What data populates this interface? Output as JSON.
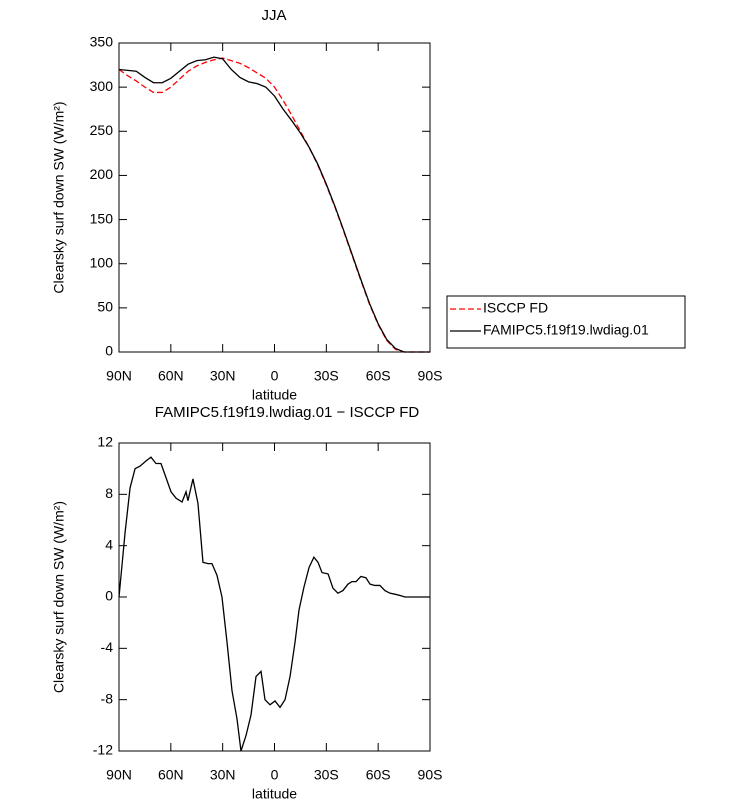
{
  "chart_data": [
    {
      "type": "line",
      "title": "JJA",
      "xlabel": "latitude",
      "ylabel": "Clearsky surf down SW (W/m²)",
      "x": [
        90,
        85,
        80,
        75,
        70,
        65,
        60,
        55,
        50,
        45,
        40,
        35,
        30,
        25,
        20,
        15,
        10,
        5,
        0,
        -5,
        -10,
        -15,
        -20,
        -25,
        -30,
        -35,
        -40,
        -45,
        -50,
        -55,
        -60,
        -65,
        -70,
        -75,
        -80,
        -85,
        -90
      ],
      "xlim": [
        90,
        -90
      ],
      "xticks": [
        {
          "value": 90,
          "label": "90N"
        },
        {
          "value": 60,
          "label": "60N"
        },
        {
          "value": 30,
          "label": "30N"
        },
        0,
        {
          "value": -30,
          "label": "30S"
        },
        {
          "value": -60,
          "label": "60S"
        },
        {
          "value": -90,
          "label": "90S"
        }
      ],
      "ylim": [
        0,
        350
      ],
      "yticks": [
        0,
        50,
        100,
        150,
        200,
        250,
        300,
        350
      ],
      "legend": "right",
      "series": [
        {
          "name": "ISCCP FD",
          "color": "#ff0000",
          "dash": true,
          "values": [
            320,
            313,
            307,
            300,
            294,
            294,
            300,
            309,
            318,
            324,
            328,
            331,
            333,
            330,
            327,
            322,
            316,
            310,
            300,
            285,
            268,
            250,
            232,
            212,
            189,
            164,
            137,
            109,
            81,
            54,
            31,
            13,
            3,
            0,
            0,
            0,
            0
          ]
        },
        {
          "name": "FAMIPC5.f19f19.lwdiag.01",
          "color": "#000000",
          "dash": false,
          "values": [
            320,
            319,
            318,
            311,
            305,
            305,
            310,
            318,
            326,
            330,
            331,
            334,
            332,
            320,
            311,
            306,
            304,
            300,
            290,
            275,
            262,
            248,
            232,
            213,
            190,
            165,
            138,
            110,
            82,
            55,
            32,
            14,
            4,
            0,
            0,
            0,
            0
          ]
        }
      ]
    },
    {
      "type": "line",
      "title": "FAMIPC5.f19f19.lwdiag.01 − ISCCP FD",
      "xlabel": "latitude",
      "ylabel": "Clearsky surf down SW (W/m²)",
      "x": [
        90,
        86.5,
        83.6,
        80.7,
        77.8,
        74.4,
        71.5,
        68.6,
        65.7,
        62.8,
        59.9,
        57,
        53.5,
        51.2,
        50.1,
        47.2,
        44.3,
        41.4,
        38.5,
        36.2,
        33.3,
        30.4,
        27.5,
        24.6,
        21.7,
        19.4,
        16.5,
        13.6,
        10.7,
        7.8,
        5.5,
        2.6,
        -0.3,
        -3.2,
        -6.1,
        -9,
        -11.9,
        -14.2,
        -17.1,
        -20,
        -22.8,
        -25.2,
        -27.5,
        -31,
        -33.8,
        -36.7,
        -39.6,
        -42.5,
        -44.8,
        -47.2,
        -50,
        -52.9,
        -55.3,
        -58.1,
        -61,
        -63.9,
        -66.8,
        -70.3,
        -73.2,
        -75.5,
        -80.1,
        -85.3,
        -90
      ],
      "xlim": [
        90,
        -90
      ],
      "xticks": [
        {
          "value": 90,
          "label": "90N"
        },
        {
          "value": 60,
          "label": "60N"
        },
        {
          "value": 30,
          "label": "30N"
        },
        0,
        {
          "value": -30,
          "label": "30S"
        },
        {
          "value": -60,
          "label": "60S"
        },
        {
          "value": -90,
          "label": "90S"
        }
      ],
      "ylim": [
        -12,
        12
      ],
      "yticks": [
        -12,
        -8,
        -4,
        0,
        4,
        8,
        12
      ],
      "series": [
        {
          "color": "#000000",
          "dash": false,
          "values": [
            0,
            5,
            8.5,
            10,
            10.2,
            10.6,
            10.9,
            10.4,
            10.4,
            9.3,
            8.2,
            7.7,
            7.4,
            8.2,
            7.5,
            9.2,
            7.3,
            2.7,
            2.6,
            2.6,
            1.7,
            0,
            -3.5,
            -7.3,
            -9.5,
            -12,
            -10.8,
            -9.2,
            -6.2,
            -5.8,
            -8,
            -8.4,
            -8.1,
            -8.6,
            -8,
            -6.2,
            -3.5,
            -1,
            0.8,
            2.3,
            3.1,
            2.7,
            1.9,
            1.8,
            0.7,
            0.3,
            0.5,
            1,
            1.2,
            1.2,
            1.6,
            1.5,
            1,
            0.9,
            0.9,
            0.5,
            0.3,
            0.2,
            0.1,
            0,
            0,
            0,
            0
          ]
        }
      ]
    }
  ]
}
